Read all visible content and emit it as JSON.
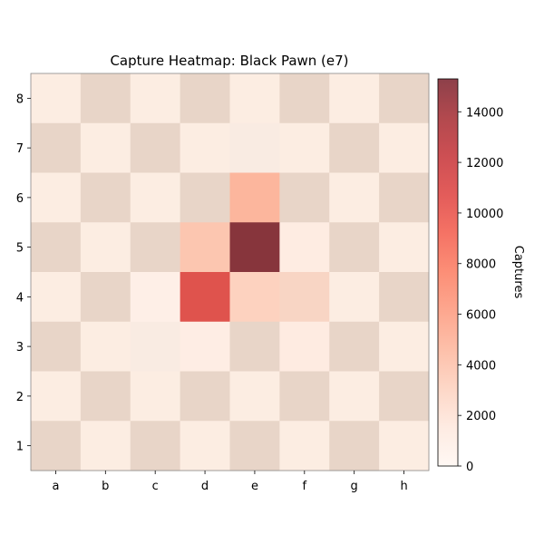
{
  "chart_data": {
    "type": "heatmap",
    "title": "Capture Heatmap: Black Pawn (e7)",
    "x_categories": [
      "a",
      "b",
      "c",
      "d",
      "e",
      "f",
      "g",
      "h"
    ],
    "y_categories": [
      "1",
      "2",
      "3",
      "4",
      "5",
      "6",
      "7",
      "8"
    ],
    "value_rows_from_rank_8_to_1": [
      [
        0,
        0,
        0,
        0,
        0,
        0,
        0,
        0
      ],
      [
        0,
        0,
        0,
        0,
        300,
        0,
        0,
        0
      ],
      [
        0,
        0,
        0,
        0,
        4900,
        0,
        0,
        0
      ],
      [
        0,
        0,
        0,
        3900,
        15300,
        900,
        0,
        0
      ],
      [
        0,
        0,
        500,
        10600,
        3100,
        2500,
        0,
        0
      ],
      [
        0,
        0,
        300,
        700,
        0,
        1000,
        0,
        0
      ],
      [
        0,
        0,
        0,
        0,
        0,
        0,
        0,
        0
      ],
      [
        0,
        0,
        0,
        0,
        0,
        0,
        0,
        0
      ]
    ],
    "board_overlay": {
      "light_square_color": "#fcede2",
      "dark_square_color": "#e8d5c8"
    },
    "colormap": {
      "name": "Reds",
      "alpha": 0.75,
      "vmin": 0,
      "vmax": 15300
    },
    "colorbar": {
      "label": "Captures",
      "ticks": [
        0,
        2000,
        4000,
        6000,
        8000,
        10000,
        12000,
        14000
      ]
    }
  }
}
